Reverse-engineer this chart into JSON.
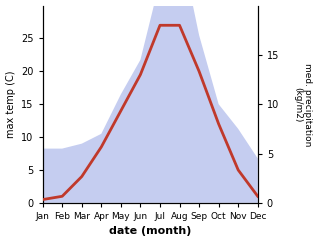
{
  "months": [
    "Jan",
    "Feb",
    "Mar",
    "Apr",
    "May",
    "Jun",
    "Jul",
    "Aug",
    "Sep",
    "Oct",
    "Nov",
    "Dec"
  ],
  "month_x": [
    1,
    2,
    3,
    4,
    5,
    6,
    7,
    8,
    9,
    10,
    11,
    12
  ],
  "temperature": [
    0.5,
    1.0,
    4.0,
    8.5,
    14.0,
    19.5,
    27.0,
    27.0,
    20.0,
    12.0,
    5.0,
    1.0
  ],
  "precipitation_raw": [
    5.5,
    5.5,
    6.0,
    7.0,
    11.0,
    14.5,
    22.5,
    26.5,
    17.0,
    10.0,
    7.5,
    4.5
  ],
  "temp_color": "#c0392b",
  "precip_fill_color": "#c5cdf0",
  "temp_ylim": [
    0,
    30
  ],
  "precip_ylim": [
    0,
    20
  ],
  "temp_yticks": [
    0,
    5,
    10,
    15,
    20,
    25
  ],
  "precip_yticks": [
    0,
    5,
    10,
    15
  ],
  "xlabel": "date (month)",
  "ylabel_left": "max temp (C)",
  "ylabel_right": "med. precipitation\n(kg/m2)",
  "background_color": "#ffffff",
  "line_width": 2.0
}
